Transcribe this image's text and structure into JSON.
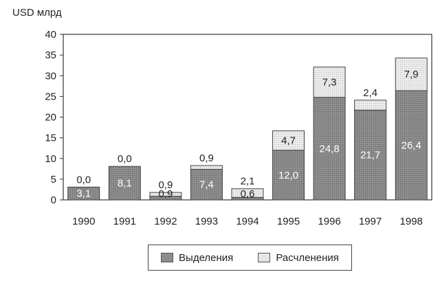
{
  "chart_data": {
    "type": "bar",
    "stacked": true,
    "ylabel": "USD млрд",
    "ylim": [
      0,
      40
    ],
    "yticks": [
      0,
      5,
      10,
      15,
      20,
      25,
      30,
      35,
      40
    ],
    "grid": false,
    "legend_position": "bottom",
    "categories": [
      "1990",
      "1991",
      "1992",
      "1993",
      "1994",
      "1995",
      "1996",
      "1997",
      "1998"
    ],
    "series": [
      {
        "name": "Выделения",
        "color": "#8d8d8d",
        "values": [
          3.1,
          8.1,
          0.9,
          7.4,
          0.6,
          12.0,
          24.8,
          21.7,
          26.4
        ],
        "labels": [
          "3,1",
          "8,1",
          "0,9",
          "7,4",
          "0,6",
          "12,0",
          "24,8",
          "21,7",
          "26,4"
        ]
      },
      {
        "name": "Расчленения",
        "color": "#e4e4e4",
        "values": [
          0.0,
          0.0,
          0.9,
          0.9,
          2.1,
          4.7,
          7.3,
          2.4,
          7.9
        ],
        "labels": [
          "0,0",
          "0,0",
          "0,9",
          "0,9",
          "2,1",
          "4,7",
          "7,3",
          "2,4",
          "7,9"
        ]
      }
    ]
  }
}
